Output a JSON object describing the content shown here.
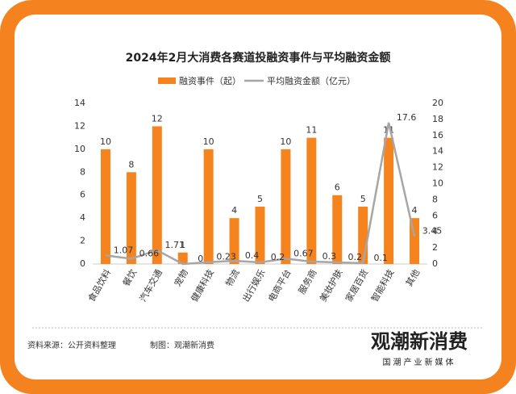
{
  "chart_data": {
    "type": "bar",
    "title": "2024年2月大消费各赛道投融资事件与平均融资金额",
    "categories": [
      "食品饮料",
      "餐饮",
      "汽车交通",
      "宠物",
      "健康科技",
      "物流",
      "出行娱乐",
      "电商平台",
      "服务商",
      "美妆护肤",
      "家居百货",
      "智能科技",
      "其他"
    ],
    "series": [
      {
        "name": "融资事件（起）",
        "color": "#f5841f",
        "values": [
          10,
          8,
          12,
          1,
          10,
          4,
          5,
          10,
          11,
          6,
          5,
          11,
          4
        ]
      },
      {
        "name": "平均融资金额（亿元）",
        "color": "#a6a6a6",
        "axis": "y2",
        "values": [
          1.07,
          0.66,
          1.71,
          0,
          0.23,
          0.4,
          0.2,
          0.67,
          0.3,
          0.2,
          0.1,
          17.6,
          3.45
        ]
      }
    ],
    "ylim": [
      0,
      14
    ],
    "yticks": [
      0,
      2,
      4,
      6,
      8,
      10,
      12,
      14
    ],
    "y2lim": [
      0,
      20
    ],
    "y2ticks": [
      0,
      2,
      4,
      6,
      8,
      10,
      12,
      14,
      16,
      18,
      20
    ],
    "grid": false
  },
  "footer": {
    "source": "资料来源：公开资料整理",
    "maker": "制图：观潮新消费",
    "logo": "观潮新消费",
    "tagline": "国潮产业新媒体"
  }
}
